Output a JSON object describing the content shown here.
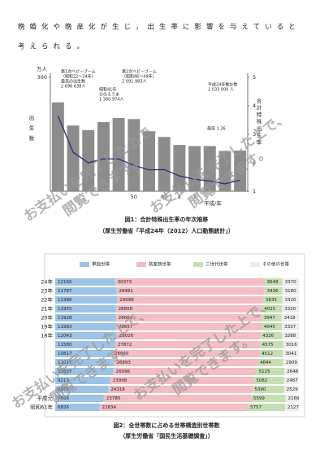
{
  "text": [
    "晩婚化や晩産化が生じ，出生率に影響を与えていると",
    "考えられる。"
  ],
  "chart_data": [
    {
      "type": "bar",
      "ylabel": "出生数",
      "y2label": "合計特殊出生率",
      "unit": "万人",
      "xlabel": "平成/年",
      "categories": [
        null,
        null,
        null,
        null,
        null,
        "50",
        null,
        "60",
        "2",
        "7",
        null,
        null,
        null
      ],
      "series": [
        {
          "name": "出生数",
          "color": "#8c8c8c",
          "values": [
            234,
            173,
            161,
            182,
            193,
            190,
            158,
            143,
            122,
            119,
            119,
            106,
            107
          ]
        },
        {
          "name": "合計特殊出生率",
          "color": "#2a2f7a",
          "axis": "y2",
          "values": [
            3.65,
            2.37,
            2.0,
            2.14,
            2.13,
            1.91,
            1.75,
            1.76,
            1.54,
            1.42,
            1.36,
            1.26,
            1.39
          ]
        }
      ],
      "ylim": [
        0,
        300
      ],
      "yticks": [
        300
      ],
      "y2lim": [
        1,
        5
      ],
      "y2ticks": [
        1,
        2,
        3,
        4,
        5
      ],
      "annotations": [
        "第1次ベビーブーム",
        "（昭和22～24年）",
        "最高の出生数",
        "2 696 638人",
        "第2次ベビーブーム",
        "（昭和46～49年）",
        "2 091 983人",
        "昭和41年",
        "ひのえうま",
        "1 360 974人",
        "平成24年推計数",
        "1 033 000 人",
        "最低 1.26"
      ],
      "caption": [
        "図1：合計特殊出生率の年次推移",
        "（厚生労働省「平成24年（2012）人口動態統計」）"
      ]
    },
    {
      "type": "stacked-hbar",
      "categories": [
        "24年",
        "23年",
        "22年",
        "21年",
        "20年",
        "19年",
        "18年",
        null,
        null,
        null,
        null,
        null,
        null,
        "平成元",
        "昭和61年"
      ],
      "series": [
        {
          "name": "単独世帯",
          "color": "#9dc3e6",
          "values": [
            12160,
            11787,
            12386,
            11955,
            11928,
            11983,
            12043,
            11580,
            10817,
            11017,
            10627,
            9213,
            8974,
            7866,
            6826
          ]
        },
        {
          "name": "核家族世帯",
          "color": "#f4bcc4",
          "values": [
            30373,
            28481,
            29096,
            28808,
            28664,
            28657,
            28026,
            27872,
            28060,
            26893,
            26096,
            23998,
            24318,
            23785,
            22834
          ]
        },
        {
          "name": "三世代世帯",
          "color": "#c5dfb3",
          "values": [
            3648,
            3436,
            3835,
            4015,
            3947,
            4045,
            4326,
            4575,
            4512,
            4844,
            5125,
            5082,
            5390,
            5599,
            5757
          ]
        },
        {
          "name": "その他の世帯",
          "color": "#ededed",
          "values": [
            3370,
            3180,
            3320,
            3320,
            3418,
            3337,
            3288,
            3016,
            3041,
            2909,
            2648,
            2487,
            2529,
            2166,
            2127
          ]
        }
      ],
      "caption": [
        "図2：全世帯数に占める世帯構造別世帯数",
        "（厚生労働省「国民生活基礎調査」）"
      ]
    }
  ],
  "watermark": [
    "お支払いを完了した上で、",
    "閲覧できます。"
  ]
}
